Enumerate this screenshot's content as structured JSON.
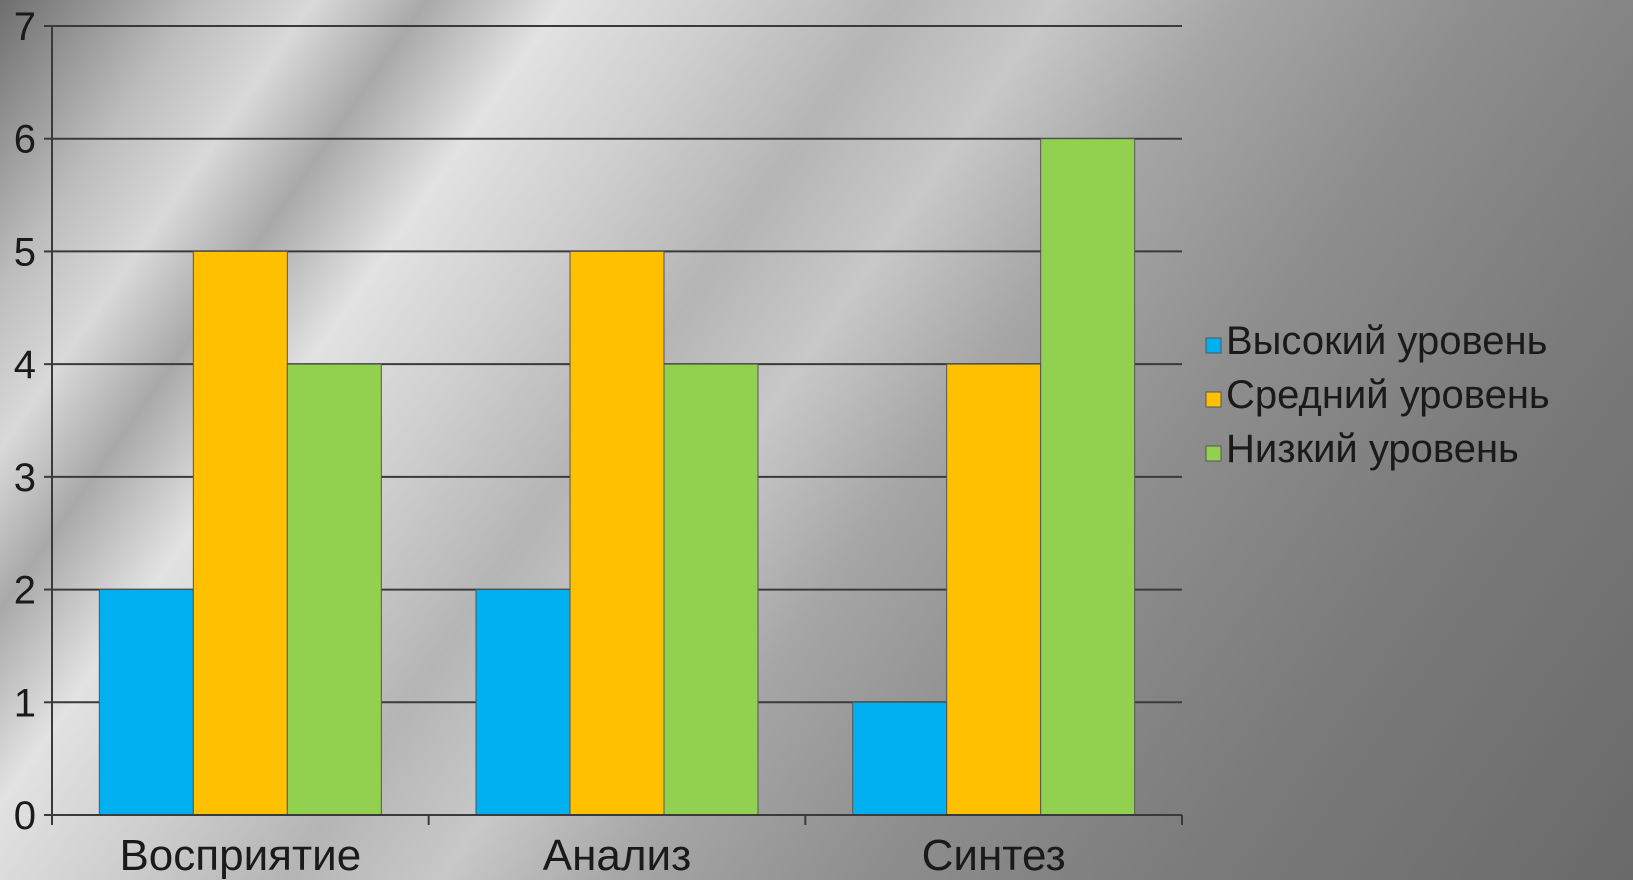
{
  "chart_data": {
    "type": "bar",
    "categories": [
      "Восприятие",
      "Анализ",
      "Синтез"
    ],
    "series": [
      {
        "name": "Высокий уровень",
        "color": "#00B0F0",
        "values": [
          2,
          2,
          1
        ]
      },
      {
        "name": "Средний уровень",
        "color": "#FFC000",
        "values": [
          5,
          5,
          4
        ]
      },
      {
        "name": "Низкий уровень",
        "color": "#92D050",
        "values": [
          4,
          4,
          6
        ]
      }
    ],
    "y_ticks": [
      "0",
      "1",
      "2",
      "3",
      "4",
      "5",
      "6",
      "7"
    ],
    "ylim": [
      0,
      7
    ],
    "grid": true,
    "legend_position": "right"
  }
}
